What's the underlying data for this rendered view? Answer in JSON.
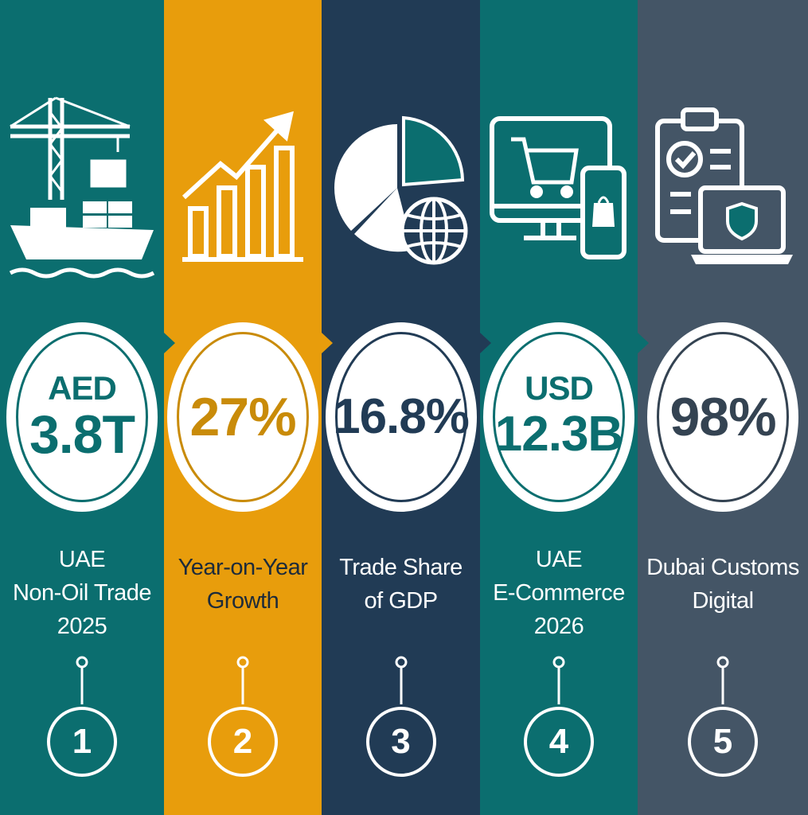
{
  "colors": {
    "teal": "#0b6e6f",
    "amber": "#e89d0c",
    "navy": "#213b55",
    "slate": "#445566",
    "white": "#ffffff"
  },
  "cards": [
    {
      "icon": "cargo-ship-crane-icon",
      "stat_prefix": "AED",
      "stat_value": "3.8T",
      "label_lines": [
        "UAE",
        "Non-Oil Trade",
        "2025"
      ],
      "number": "1"
    },
    {
      "icon": "growth-bar-chart-icon",
      "stat_prefix": "",
      "stat_value": "27%",
      "label_lines": [
        "Year-on-Year",
        "Growth"
      ],
      "number": "2"
    },
    {
      "icon": "pie-chart-globe-icon",
      "stat_prefix": "",
      "stat_value": "16.8%",
      "label_lines": [
        "Trade Share",
        "of GDP"
      ],
      "number": "3"
    },
    {
      "icon": "ecommerce-cart-icon",
      "stat_prefix": "USD",
      "stat_value": "12.3B",
      "label_lines": [
        "UAE",
        "E-Commerce",
        "2026"
      ],
      "number": "4"
    },
    {
      "icon": "digital-customs-icon",
      "stat_prefix": "",
      "stat_value": "98%",
      "label_lines": [
        "Dubai Customs",
        "Digital"
      ],
      "number": "5"
    }
  ]
}
